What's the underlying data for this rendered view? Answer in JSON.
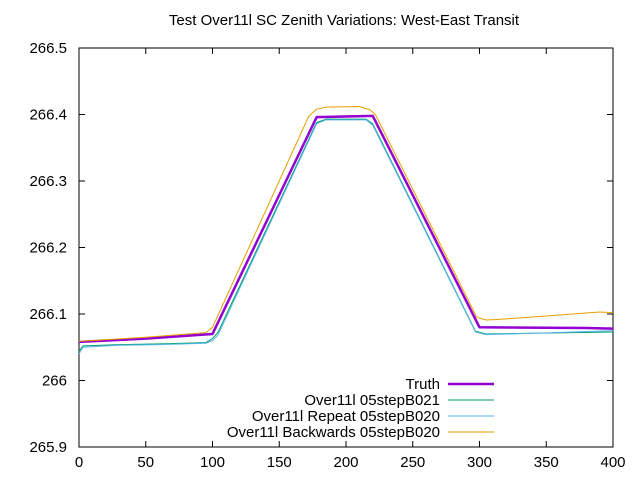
{
  "chart_data": {
    "type": "line",
    "title": "Test Over11l SC Zenith Variations: West-East Transit",
    "xlabel": "",
    "ylabel": "",
    "xlim": [
      0,
      400
    ],
    "ylim": [
      265.9,
      266.5
    ],
    "x_ticks": [
      0,
      50,
      100,
      150,
      200,
      250,
      300,
      350,
      400
    ],
    "y_ticks": [
      265.9,
      266,
      266.1,
      266.2,
      266.3,
      266.4,
      266.5
    ],
    "x_tick_labels": [
      "0",
      "50",
      "100",
      "150",
      "200",
      "250",
      "300",
      "350",
      "400"
    ],
    "y_tick_labels": [
      "265.9",
      "266",
      "266.1",
      "266.2",
      "266.3",
      "266.4",
      "266.5"
    ],
    "grid": false,
    "legend_position": "bottom-right",
    "series": [
      {
        "name": "Truth",
        "color": "#9400d3",
        "width": 2.5,
        "points": [
          [
            0,
            266.058
          ],
          [
            50,
            266.063
          ],
          [
            100,
            266.07
          ],
          [
            178,
            266.396
          ],
          [
            220,
            266.398
          ],
          [
            300,
            266.08
          ],
          [
            380,
            266.079
          ],
          [
            400,
            266.078
          ]
        ]
      },
      {
        "name": "Over11l 05stepB021",
        "color": "#009e73",
        "width": 1,
        "points": [
          [
            0,
            266.044
          ],
          [
            3,
            266.052
          ],
          [
            30,
            266.054
          ],
          [
            60,
            266.055
          ],
          [
            95,
            266.057
          ],
          [
            100,
            266.063
          ],
          [
            104,
            266.072
          ],
          [
            178,
            266.388
          ],
          [
            185,
            266.393
          ],
          [
            215,
            266.393
          ],
          [
            220,
            266.386
          ],
          [
            297,
            266.074
          ],
          [
            305,
            266.07
          ],
          [
            340,
            266.071
          ],
          [
            370,
            266.072
          ],
          [
            400,
            266.073
          ]
        ]
      },
      {
        "name": "Over11l Repeat 05stepB020",
        "color": "#56b4e9",
        "width": 1,
        "points": [
          [
            0,
            266.04
          ],
          [
            3,
            266.05
          ],
          [
            30,
            266.053
          ],
          [
            60,
            266.054
          ],
          [
            95,
            266.056
          ],
          [
            100,
            266.06
          ],
          [
            104,
            266.068
          ],
          [
            178,
            266.386
          ],
          [
            185,
            266.392
          ],
          [
            215,
            266.392
          ],
          [
            220,
            266.384
          ],
          [
            297,
            266.073
          ],
          [
            305,
            266.069
          ],
          [
            340,
            266.071
          ],
          [
            370,
            266.073
          ],
          [
            400,
            266.075
          ]
        ]
      },
      {
        "name": "Over11l Backwards 05stepB020",
        "color": "#e69f00",
        "width": 1,
        "points": [
          [
            0,
            266.059
          ],
          [
            50,
            266.065
          ],
          [
            95,
            266.072
          ],
          [
            100,
            266.08
          ],
          [
            172,
            266.397
          ],
          [
            178,
            266.408
          ],
          [
            185,
            266.411
          ],
          [
            210,
            266.412
          ],
          [
            218,
            266.407
          ],
          [
            222,
            266.4
          ],
          [
            298,
            266.095
          ],
          [
            305,
            266.091
          ],
          [
            315,
            266.092
          ],
          [
            350,
            266.097
          ],
          [
            390,
            266.103
          ],
          [
            400,
            266.102
          ]
        ]
      }
    ]
  }
}
